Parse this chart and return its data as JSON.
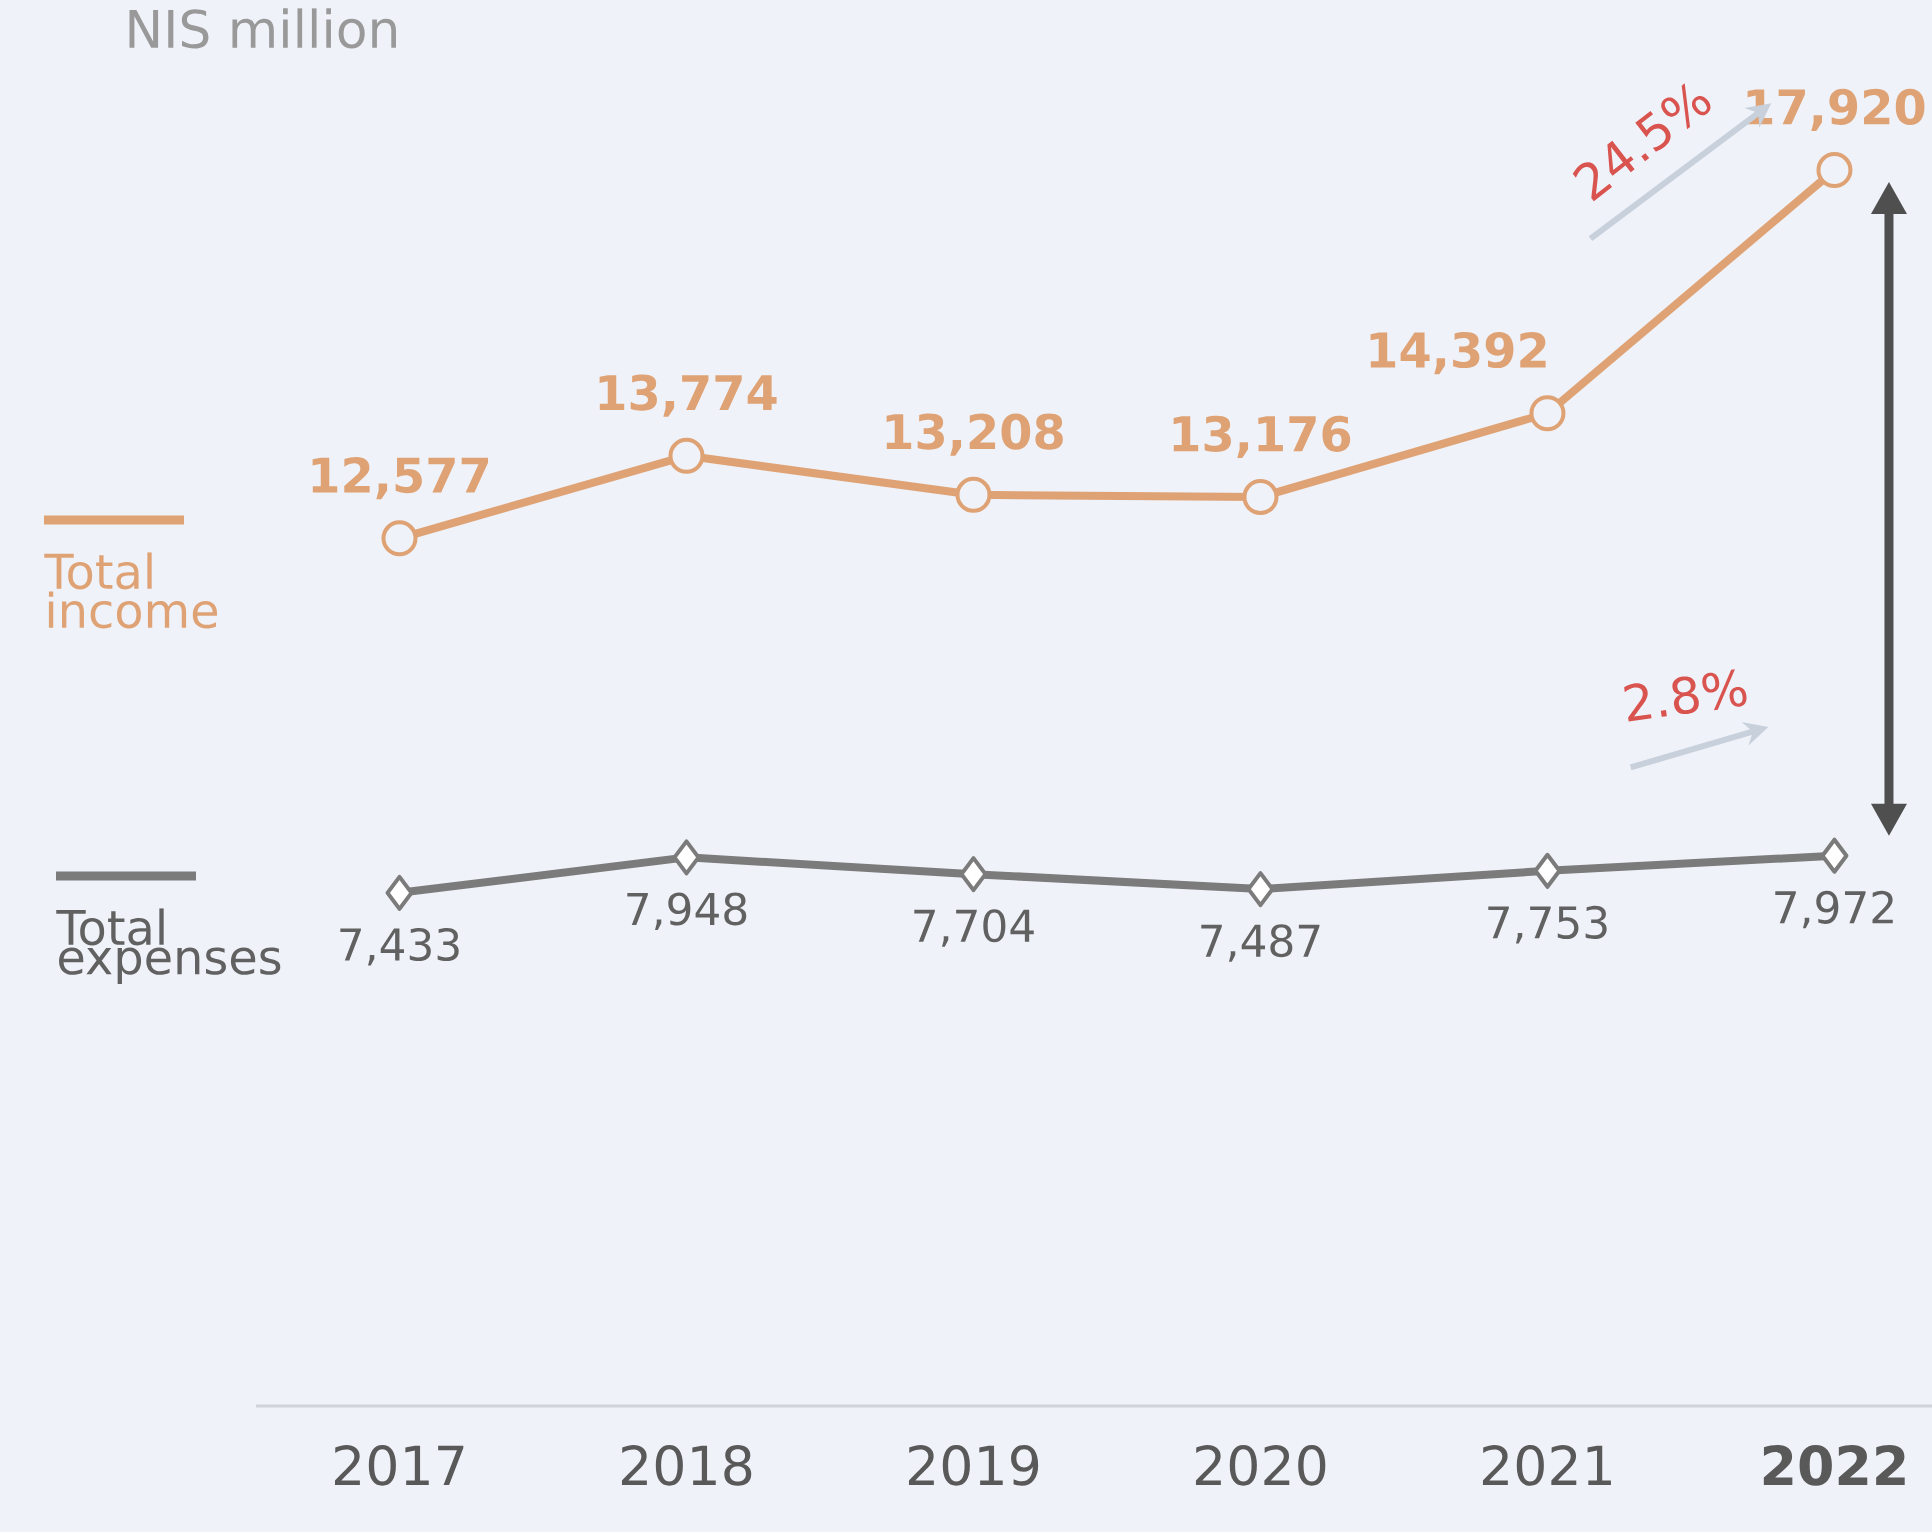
{
  "chart_data": {
    "type": "line",
    "title": "NIS million",
    "categories": [
      "2017",
      "2018",
      "2019",
      "2020",
      "2021",
      "**2022**"
    ],
    "series": [
      {
        "name": "Total income",
        "color": "#dfa274",
        "marker": "circle",
        "values": [
          12577,
          13774,
          13208,
          13176,
          14392,
          17920
        ],
        "value_labels": [
          "12,577",
          "13,774",
          "13,208",
          "13,176",
          "14,392",
          "17,920"
        ]
      },
      {
        "name": "Total expenses",
        "color": "#7b7b7b",
        "marker": "diamond",
        "values": [
          7433,
          7948,
          7704,
          7487,
          7753,
          7972
        ],
        "value_labels": [
          "7,433",
          "7,948",
          "7,704",
          "7,487",
          "7,753",
          "7,972"
        ]
      }
    ],
    "legend": "left",
    "annotations": [
      "24.5%",
      "2.8%"
    ]
  }
}
